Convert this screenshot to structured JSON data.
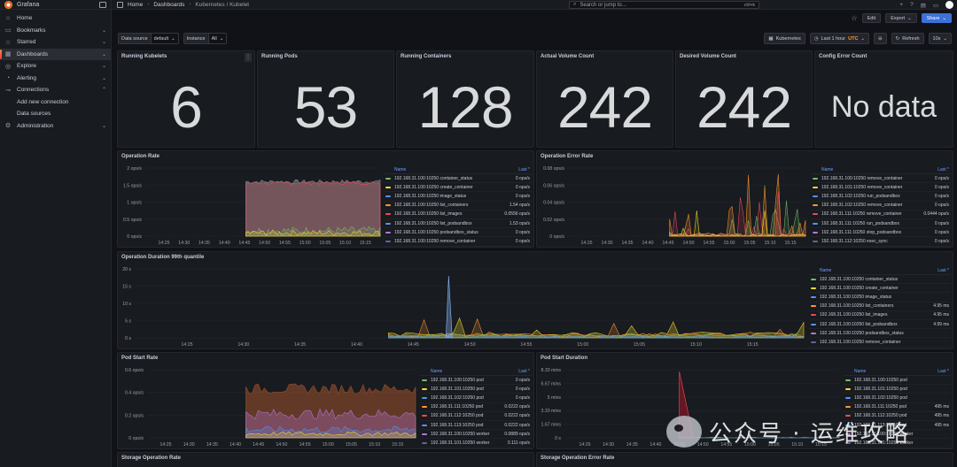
{
  "app": {
    "name": "Grafana"
  },
  "sidebar": {
    "items": [
      {
        "label": "Home",
        "icon": "home-icon",
        "chevron": ""
      },
      {
        "label": "Bookmarks",
        "icon": "bookmark-icon",
        "chevron": "⌄"
      },
      {
        "label": "Starred",
        "icon": "star-icon",
        "chevron": "⌄"
      },
      {
        "label": "Dashboards",
        "icon": "apps-icon",
        "chevron": "⌄",
        "active": true
      },
      {
        "label": "Explore",
        "icon": "compass-icon",
        "chevron": "⌄"
      },
      {
        "label": "Alerting",
        "icon": "bell-icon",
        "chevron": "⌄"
      },
      {
        "label": "Connections",
        "icon": "plug-icon",
        "chevron": "⌃"
      },
      {
        "label": "Add new connection",
        "sub": true
      },
      {
        "label": "Data sources",
        "sub": true
      },
      {
        "label": "Administration",
        "icon": "gear-icon",
        "chevron": "⌄"
      }
    ]
  },
  "topbar": {
    "breadcrumbs": [
      "Home",
      "Dashboards",
      "Kubernetes / Kubelet"
    ],
    "search_placeholder": "Search or jump to...",
    "search_shortcut": "ctrl+k"
  },
  "toolbar": {
    "edit": "Edit",
    "export": "Export",
    "share": "Share"
  },
  "variables": [
    {
      "label": "Data source",
      "value": "default"
    },
    {
      "label": "Instance",
      "value": "All"
    }
  ],
  "controls": {
    "dashboard_link": "Kubernetes",
    "time_range": "Last 1 hour",
    "tz": "UTC",
    "refresh": "Refresh",
    "interval": "10s"
  },
  "stats": [
    {
      "title": "Running Kubelets",
      "value": "6"
    },
    {
      "title": "Running Pods",
      "value": "53"
    },
    {
      "title": "Running Containers",
      "value": "128"
    },
    {
      "title": "Actual Volume Count",
      "value": "242"
    },
    {
      "title": "Desired Volume Count",
      "value": "242"
    },
    {
      "title": "Config Error Count",
      "value": "No data"
    }
  ],
  "panels": {
    "op_rate": {
      "title": "Operation Rate",
      "yticks": [
        "2 ops/s",
        "1.5 ops/s",
        "1 ops/s",
        "0.5 ops/s",
        "0 ops/s"
      ],
      "xticks": [
        "14:25",
        "14:30",
        "14:35",
        "14:40",
        "14:45",
        "14:50",
        "14:55",
        "15:00",
        "15:05",
        "15:10",
        "15:15",
        "15:20"
      ],
      "legend_name": "Name",
      "legend_last": "Last *",
      "rows": [
        {
          "name": "192.168.31.100:10250 container_status",
          "value": "0 ops/s",
          "color": "#73bf69"
        },
        {
          "name": "192.168.31.100:10250 create_container",
          "value": "0 ops/s",
          "color": "#fade2a"
        },
        {
          "name": "192.168.31.100:10250 image_status",
          "value": "0 ops/s",
          "color": "#5794f2"
        },
        {
          "name": "192.168.31.100:10250 list_containers",
          "value": "1.54 ops/s",
          "color": "#ff9830"
        },
        {
          "name": "192.168.31.100:10250 list_images",
          "value": "0.0556 ops/s",
          "color": "#f2495c"
        },
        {
          "name": "192.168.31.100:10250 list_podsandbox",
          "value": "1.53 ops/s",
          "color": "#5794f2"
        },
        {
          "name": "192.168.31.100:10250 podsandbox_status",
          "value": "0 ops/s",
          "color": "#b877d9"
        },
        {
          "name": "192.168.31.100:10250 remove_container",
          "value": "0 ops/s",
          "color": "#705da0"
        }
      ]
    },
    "op_err": {
      "title": "Operation Error Rate",
      "yticks": [
        "0.08 ops/s",
        "0.06 ops/s",
        "0.04 ops/s",
        "0.02 ops/s",
        "0 ops/s"
      ],
      "xticks": [
        "14:25",
        "14:30",
        "14:35",
        "14:40",
        "14:45",
        "14:50",
        "14:55",
        "15:00",
        "15:05",
        "15:10",
        "15:15",
        "15:20"
      ],
      "legend_name": "Name",
      "legend_last": "Last *",
      "rows": [
        {
          "name": "192.168.31.100:10250 remove_container",
          "value": "0 ops/s",
          "color": "#73bf69"
        },
        {
          "name": "192.168.31.101:10250 remove_container",
          "value": "0 ops/s",
          "color": "#fade2a"
        },
        {
          "name": "192.168.31.102:10250 run_podsandbox",
          "value": "0 ops/s",
          "color": "#5794f2"
        },
        {
          "name": "192.168.31.102:10250 remove_container",
          "value": "0 ops/s",
          "color": "#ff9830"
        },
        {
          "name": "192.168.31.111:10250 remove_container",
          "value": "0.0444 ops/s",
          "color": "#f2495c"
        },
        {
          "name": "192.168.31.111:10250 run_podsandbox",
          "value": "0 ops/s",
          "color": "#5794f2"
        },
        {
          "name": "192.168.31.111:10250 stop_podsandbox",
          "value": "0 ops/s",
          "color": "#b877d9"
        },
        {
          "name": "192.168.31.112:10250 exec_sync",
          "value": "0 ops/s",
          "color": "#705da0"
        }
      ]
    },
    "op_dur": {
      "title": "Operation Duration 99th quantile",
      "yticks": [
        "20 s",
        "15 s",
        "10 s",
        "5 s",
        "0 s"
      ],
      "xticks": [
        "14:25",
        "14:30",
        "14:35",
        "14:40",
        "14:45",
        "14:50",
        "14:55",
        "15:00",
        "15:05",
        "15:10",
        "15:15",
        "15:20"
      ],
      "legend_name": "Name",
      "legend_last": "Last *",
      "rows": [
        {
          "name": "192.168.31.100:10250 container_status",
          "value": "",
          "color": "#73bf69"
        },
        {
          "name": "192.168.31.100:10250 create_container",
          "value": "",
          "color": "#fade2a"
        },
        {
          "name": "192.168.31.100:10250 image_status",
          "value": "",
          "color": "#5794f2"
        },
        {
          "name": "192.168.31.100:10250 list_containers",
          "value": "4.95 ms",
          "color": "#ff9830"
        },
        {
          "name": "192.168.31.100:10250 list_images",
          "value": "4.95 ms",
          "color": "#f2495c"
        },
        {
          "name": "192.168.31.100:10250 list_podsandbox",
          "value": "4.99 ms",
          "color": "#5794f2"
        },
        {
          "name": "192.168.31.100:10250 podsandbox_status",
          "value": "",
          "color": "#b877d9"
        },
        {
          "name": "192.168.31.100:10250 remove_container",
          "value": "",
          "color": "#705da0"
        }
      ]
    },
    "pod_rate": {
      "title": "Pod Start Rate",
      "yticks": [
        "0.6 ops/s",
        "0.4 ops/s",
        "0.2 ops/s",
        "0 ops/s"
      ],
      "xticks": [
        "14:25",
        "14:30",
        "14:35",
        "14:40",
        "14:45",
        "14:50",
        "14:55",
        "15:00",
        "15:05",
        "15:10",
        "15:15",
        "15:20"
      ],
      "legend_name": "Name",
      "legend_last": "Last *",
      "rows": [
        {
          "name": "192.168.31.100:10250 pod",
          "value": "0 ops/s",
          "color": "#73bf69"
        },
        {
          "name": "192.168.31.101:10250 pod",
          "value": "0 ops/s",
          "color": "#fade2a"
        },
        {
          "name": "192.168.31.102:10250 pod",
          "value": "0 ops/s",
          "color": "#5794f2"
        },
        {
          "name": "192.168.31.111:10250 pod",
          "value": "0.0222 ops/s",
          "color": "#ff9830"
        },
        {
          "name": "192.168.31.112:10250 pod",
          "value": "0.0222 ops/s",
          "color": "#f2495c"
        },
        {
          "name": "192.168.31.113:10250 pod",
          "value": "0.0222 ops/s",
          "color": "#5794f2"
        },
        {
          "name": "192.168.31.100:10250 worker",
          "value": "0.0889 ops/s",
          "color": "#b877d9"
        },
        {
          "name": "192.168.31.101:10250 worker",
          "value": "0.111 ops/s",
          "color": "#705da0"
        }
      ]
    },
    "pod_dur": {
      "title": "Pod Start Duration",
      "yticks": [
        "8.33 mins",
        "6.67 mins",
        "5 mins",
        "3.33 mins",
        "1.67 mins",
        "0 s"
      ],
      "xticks": [
        "14:25",
        "14:30",
        "14:35",
        "14:40",
        "14:45",
        "14:50",
        "14:55",
        "15:00",
        "15:05",
        "15:10",
        "15:15",
        "15:20"
      ],
      "legend_name": "Name",
      "legend_last": "Last *",
      "rows": [
        {
          "name": "192.168.31.100:10250 pod",
          "value": "",
          "color": "#73bf69"
        },
        {
          "name": "192.168.31.101:10250 pod",
          "value": "",
          "color": "#fade2a"
        },
        {
          "name": "192.168.31.102:10250 pod",
          "value": "",
          "color": "#5794f2"
        },
        {
          "name": "192.168.31.111:10250 pod",
          "value": "495 ms",
          "color": "#ff9830"
        },
        {
          "name": "192.168.31.112:10250 pod",
          "value": "495 ms",
          "color": "#f2495c"
        },
        {
          "name": "192.168.31.113:10250 pod",
          "value": "495 ms",
          "color": "#5794f2"
        },
        {
          "name": "192.168.31.100:10250 worker",
          "value": "",
          "color": "#b877d9"
        },
        {
          "name": "192.168.31.101:10250 worker",
          "value": "",
          "color": "#705da0"
        }
      ]
    },
    "storage_rate": {
      "title": "Storage Operation Rate"
    },
    "storage_err": {
      "title": "Storage Operation Error Rate"
    }
  },
  "watermark": {
    "text": "公众号 · 运维攻略"
  }
}
